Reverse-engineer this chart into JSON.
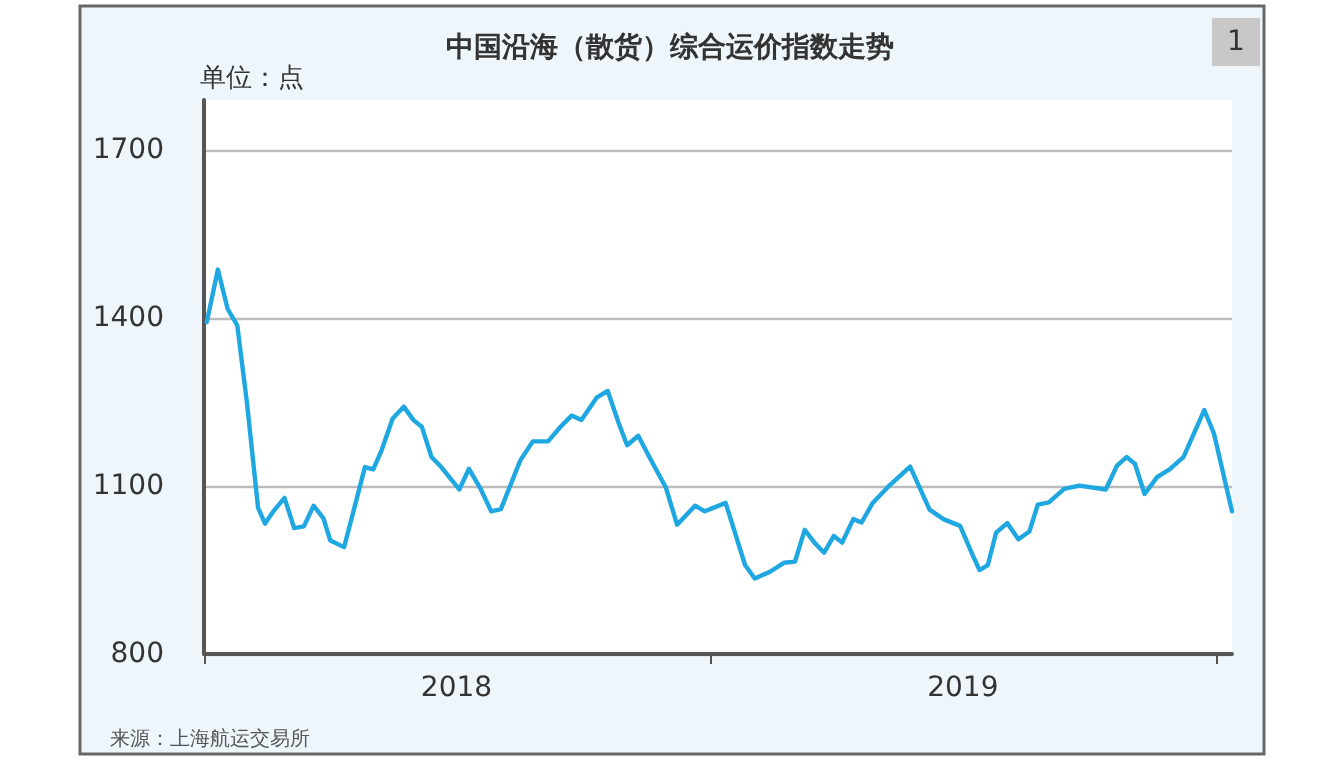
{
  "chart_data": {
    "type": "line",
    "title": "中国沿海（散货）综合运价指数走势",
    "annotations": [
      "单位：点",
      "1",
      "来源：上海航运交易所"
    ],
    "x": [
      "2018-01-03",
      "2018-01-11",
      "2018-01-18",
      "2018-01-25",
      "2018-02-01",
      "2018-02-09",
      "2018-02-14",
      "2018-02-20",
      "2018-02-28",
      "2018-03-07",
      "2018-03-14",
      "2018-03-21",
      "2018-03-28",
      "2018-04-02",
      "2018-04-12",
      "2018-04-27",
      "2018-05-03",
      "2018-05-09",
      "2018-05-17",
      "2018-05-25",
      "2018-06-01",
      "2018-06-07",
      "2018-06-14",
      "2018-06-21",
      "2018-07-04",
      "2018-07-11",
      "2018-07-19",
      "2018-07-27",
      "2018-08-03",
      "2018-08-17",
      "2018-08-26",
      "2018-09-06",
      "2018-09-15",
      "2018-09-23",
      "2018-09-30",
      "2018-10-11",
      "2018-10-19",
      "2018-10-27",
      "2018-11-02",
      "2018-11-10",
      "2018-11-18",
      "2018-11-30",
      "2018-12-08",
      "2018-12-21",
      "2018-12-28",
      "2019-01-12",
      "2019-01-26",
      "2019-02-02",
      "2019-02-13",
      "2019-02-23",
      "2019-03-03",
      "2019-03-10",
      "2019-03-17",
      "2019-03-24",
      "2019-03-31",
      "2019-04-06",
      "2019-04-14",
      "2019-04-20",
      "2019-04-28",
      "2019-05-10",
      "2019-05-25",
      "2019-06-08",
      "2019-06-18",
      "2019-06-30",
      "2019-07-09",
      "2019-07-14",
      "2019-07-20",
      "2019-07-26",
      "2019-08-03",
      "2019-08-11",
      "2019-08-19",
      "2019-08-25",
      "2019-09-02",
      "2019-09-13",
      "2019-09-24",
      "2019-10-13",
      "2019-10-21",
      "2019-10-28",
      "2019-11-03",
      "2019-11-10",
      "2019-11-19",
      "2019-11-28",
      "2019-12-08",
      "2019-12-23",
      "2019-12-30",
      "2020-01-12"
    ],
    "series": [
      {
        "color": "#1ea7e1",
        "values": [
          1393,
          1487,
          1417,
          1387,
          1248,
          1061,
          1033,
          1055,
          1079,
          1025,
          1028,
          1065,
          1043,
          1003,
          991,
          1134,
          1130,
          1164,
          1221,
          1242,
          1218,
          1206,
          1152,
          1134,
          1094,
          1131,
          1097,
          1055,
          1059,
          1146,
          1180,
          1180,
          1206,
          1226,
          1218,
          1258,
          1270,
          1212,
          1173,
          1190,
          1152,
          1097,
          1031,
          1065,
          1055,
          1070,
          959,
          935,
          947,
          963,
          965,
          1022,
          999,
          981,
          1011,
          999,
          1041,
          1035,
          1070,
          1101,
          1135,
          1058,
          1041,
          1029,
          977,
          950,
          959,
          1017,
          1034,
          1005,
          1019,
          1067,
          1071,
          1095,
          1101,
          1094,
          1136,
          1152,
          1140,
          1086,
          1116,
          1130,
          1152,
          1236,
          1194,
          1055
        ]
      }
    ],
    "xlim": [
      "2018-01-01",
      "2020-01-12"
    ],
    "xticks": [
      {
        "value": "2018-01-01",
        "label": null
      },
      {
        "value": "2018-07-02",
        "label": "2018"
      },
      {
        "value": "2019-01-01",
        "label": null
      },
      {
        "value": "2019-07-02",
        "label": "2019"
      },
      {
        "value": "2020-01-01",
        "label": null
      }
    ],
    "ylim": [
      800,
      1790
    ],
    "yticks": [
      800,
      1100,
      1400,
      1700
    ],
    "grid": "y",
    "marker": "none",
    "line_style": "solid"
  }
}
